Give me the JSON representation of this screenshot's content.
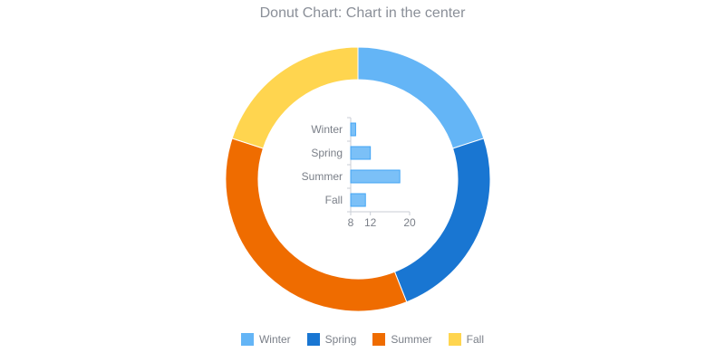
{
  "chart_data": [
    {
      "type": "pie",
      "variant": "donut",
      "title": "Donut Chart: Chart in the center",
      "categories": [
        "Winter",
        "Spring",
        "Summer",
        "Fall"
      ],
      "values": [
        20,
        24,
        36,
        20
      ],
      "colors": [
        "#64b5f6",
        "#1976d2",
        "#ef6c00",
        "#ffd54f"
      ],
      "legend_position": "bottom"
    },
    {
      "type": "bar",
      "orientation": "horizontal",
      "categories": [
        "Winter",
        "Spring",
        "Summer",
        "Fall"
      ],
      "values": [
        9,
        12,
        18,
        11
      ],
      "xlim": [
        8,
        20
      ],
      "xticks": [
        "8",
        "12",
        "20"
      ],
      "color": "#64b5f6",
      "grid": false
    }
  ]
}
